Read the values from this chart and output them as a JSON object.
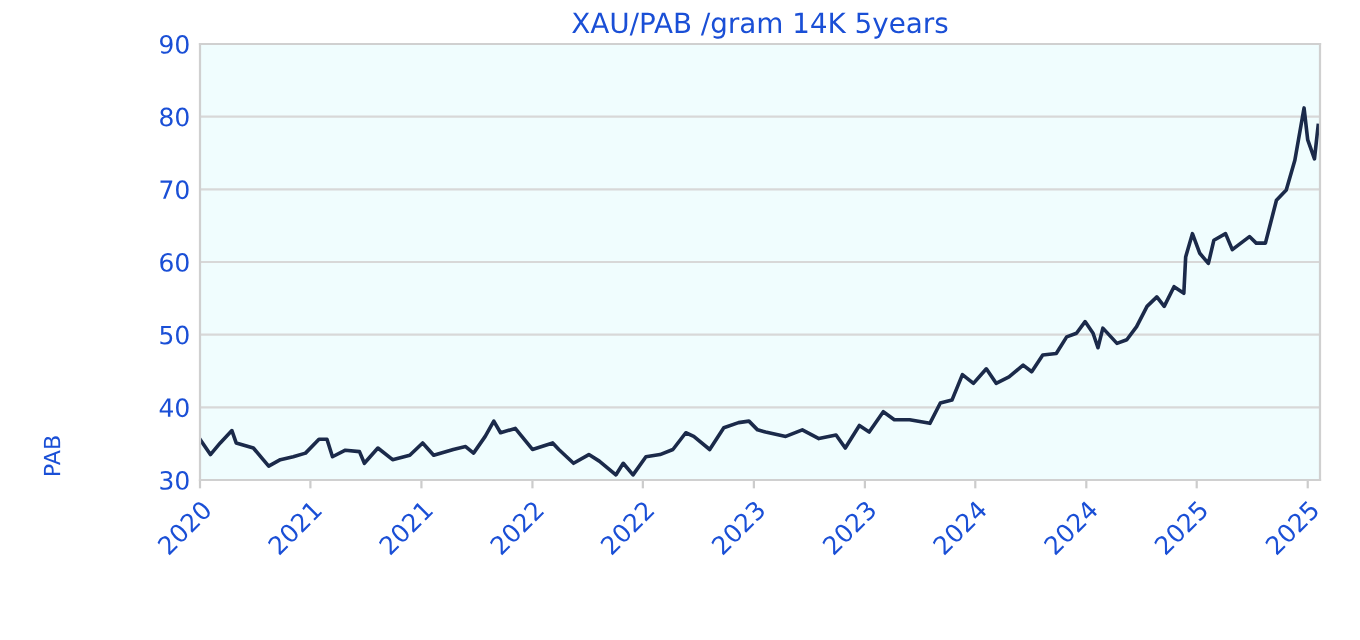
{
  "chart_data": {
    "type": "line",
    "title": "XAU/PAB /gram 14K 5years",
    "ylabel": "PAB",
    "x": [
      "2020-10-19",
      "2020-11-05",
      "2020-11-21",
      "2020-12-10",
      "2020-12-17",
      "2021-01-14",
      "2021-01-30",
      "2021-02-08",
      "2021-02-27",
      "2021-03-20",
      "2021-04-09",
      "2021-05-01",
      "2021-05-14",
      "2021-05-23",
      "2021-06-13",
      "2021-07-06",
      "2021-07-14",
      "2021-08-05",
      "2021-08-29",
      "2021-09-26",
      "2021-10-17",
      "2021-11-04",
      "2021-12-06",
      "2021-12-26",
      "2022-01-08",
      "2022-01-27",
      "2022-02-10",
      "2022-02-21",
      "2022-03-17",
      "2022-04-14",
      "2022-05-17",
      "2022-05-27",
      "2022-06-20",
      "2022-07-15",
      "2022-08-01",
      "2022-08-28",
      "2022-09-09",
      "2022-09-25",
      "2022-10-16",
      "2022-11-08",
      "2022-11-29",
      "2022-12-20",
      "2023-01-02",
      "2023-01-28",
      "2023-02-20",
      "2023-03-16",
      "2023-04-02",
      "2023-04-16",
      "2023-04-29",
      "2023-06-01",
      "2023-06-28",
      "2023-07-25",
      "2023-08-22",
      "2023-09-06",
      "2023-09-29",
      "2023-10-15",
      "2023-11-07",
      "2023-11-25",
      "2023-12-20",
      "2024-01-22",
      "2024-02-08",
      "2024-02-27",
      "2024-03-15",
      "2024-04-02",
      "2024-04-23",
      "2024-05-09",
      "2024-05-30",
      "2024-06-22",
      "2024-07-06",
      "2024-07-24",
      "2024-08-15",
      "2024-09-01",
      "2024-09-17",
      "2024-10-01",
      "2024-10-14",
      "2024-10-22",
      "2024-10-30",
      "2024-11-22",
      "2024-12-08",
      "2024-12-24",
      "2025-01-10",
      "2025-01-26",
      "2025-02-07",
      "2025-02-23",
      "2025-03-11",
      "2025-03-14",
      "2025-03-25",
      "2025-04-06",
      "2025-04-20",
      "2025-04-29",
      "2025-05-18",
      "2025-05-29",
      "2025-06-26",
      "2025-07-07",
      "2025-07-22",
      "2025-08-09",
      "2025-08-25",
      "2025-09-08",
      "2025-09-23",
      "2025-09-29",
      "2025-10-10",
      "2025-10-16"
    ],
    "series": [
      {
        "color": "#1b2a4a",
        "values": [
          35.6,
          33.5,
          35.1,
          36.8,
          35.1,
          34.4,
          32.8,
          31.9,
          32.8,
          33.2,
          33.7,
          35.6,
          35.6,
          33.2,
          34.1,
          33.9,
          32.3,
          34.4,
          32.8,
          33.4,
          35.1,
          33.4,
          34.2,
          34.6,
          33.7,
          36.0,
          38.1,
          36.5,
          37.1,
          34.2,
          35.1,
          34.2,
          32.3,
          33.5,
          32.6,
          30.7,
          32.3,
          30.7,
          33.2,
          33.5,
          34.2,
          36.5,
          36.0,
          34.2,
          37.2,
          37.9,
          38.1,
          36.9,
          36.6,
          36.0,
          36.9,
          35.7,
          36.2,
          34.4,
          37.5,
          36.6,
          39.4,
          38.3,
          38.3,
          37.8,
          40.6,
          41.0,
          44.5,
          43.3,
          45.3,
          43.3,
          44.2,
          45.8,
          44.9,
          47.2,
          47.4,
          49.7,
          50.2,
          51.8,
          50.2,
          48.2,
          50.9,
          48.8,
          49.3,
          51.1,
          53.9,
          55.2,
          53.9,
          56.6,
          55.7,
          60.7,
          63.9,
          61.2,
          59.8,
          63.0,
          63.9,
          61.7,
          63.5,
          62.6,
          62.6,
          68.5,
          69.9,
          74.0,
          81.2,
          76.8,
          74.2,
          78.8
        ]
      }
    ],
    "xlim": [
      "2020-10-19",
      "2025-10-19"
    ],
    "xticks": [
      {
        "value": "2020-10-19",
        "label": "2020"
      },
      {
        "value": "2021-04-17",
        "label": "2021"
      },
      {
        "value": "2021-10-15",
        "label": "2021"
      },
      {
        "value": "2022-04-14",
        "label": "2022"
      },
      {
        "value": "2022-10-11",
        "label": "2022"
      },
      {
        "value": "2023-04-10",
        "label": "2023"
      },
      {
        "value": "2023-10-08",
        "label": "2023"
      },
      {
        "value": "2024-04-05",
        "label": "2024"
      },
      {
        "value": "2024-10-03",
        "label": "2024"
      },
      {
        "value": "2025-04-01",
        "label": "2025"
      },
      {
        "value": "2025-09-29",
        "label": "2025"
      }
    ],
    "ylim": [
      30,
      90
    ],
    "yticks": [
      30,
      40,
      50,
      60,
      70,
      80,
      90
    ],
    "grid": "y",
    "marker": "none",
    "line_style": "solid"
  }
}
